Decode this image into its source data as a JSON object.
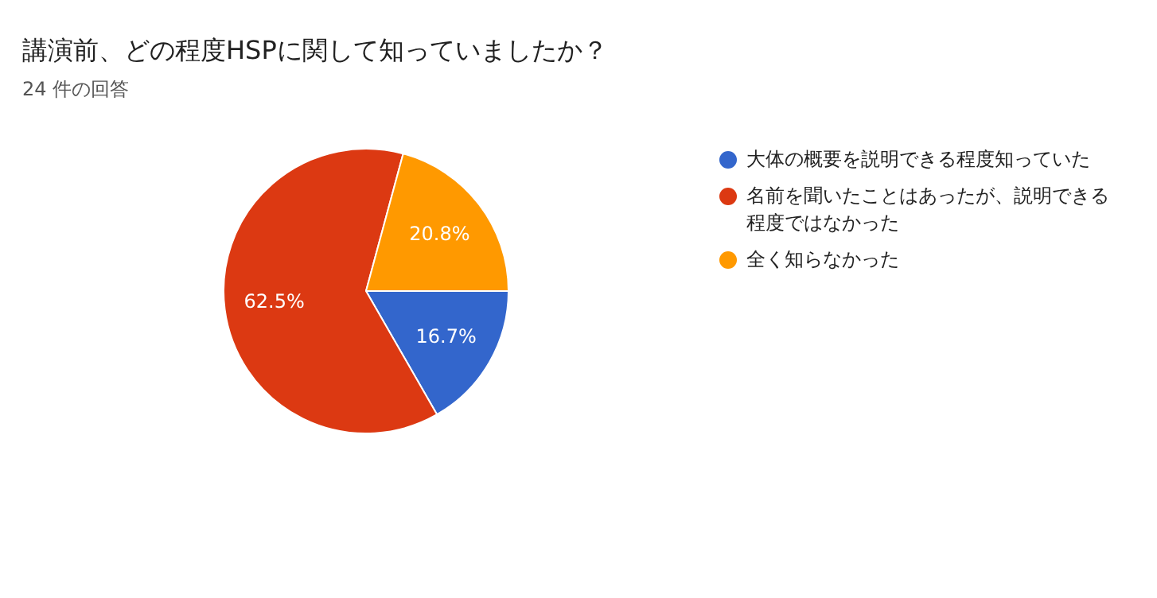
{
  "chart_data": {
    "type": "pie",
    "title": "講演前、どの程度HSPに関して知っていましたか？",
    "subtitle": "24 件の回答",
    "categories": [
      "大体の概要を説明できる程度知っていた",
      "名前を聞いたことはあったが、説明できる程度ではなかった",
      "全く知らなかった"
    ],
    "values": [
      16.7,
      62.5,
      20.8
    ],
    "colors": [
      "#3366cc",
      "#dc3912",
      "#ff9900"
    ],
    "value_labels": [
      "16.7%",
      "62.5%",
      "20.8%"
    ],
    "legend": "right"
  }
}
